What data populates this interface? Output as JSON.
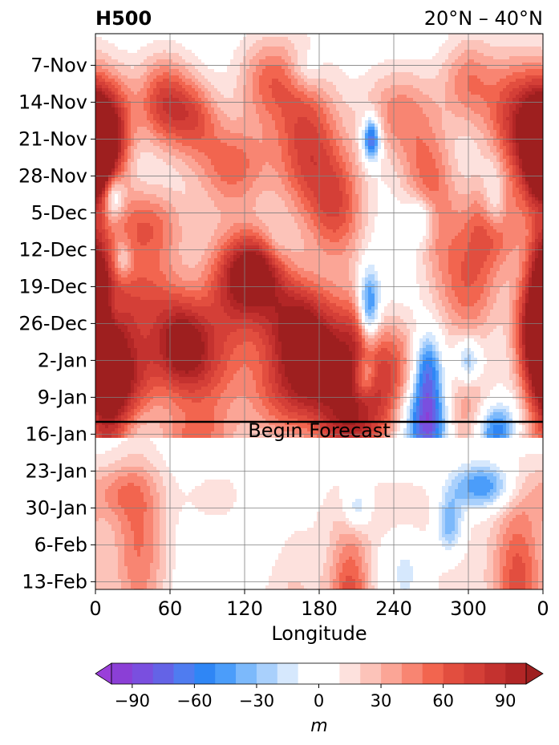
{
  "chart_data": {
    "type": "heatmap",
    "title_left": "H500",
    "title_right": "20°N – 40°N",
    "xlabel": "Longitude",
    "ylabel": "",
    "x_ticks": [
      "0",
      "60",
      "120",
      "180",
      "240",
      "300",
      "0"
    ],
    "x_tick_values": [
      0,
      60,
      120,
      180,
      240,
      300,
      360
    ],
    "y_ticks": [
      "7-Nov",
      "14-Nov",
      "21-Nov",
      "28-Nov",
      "5-Dec",
      "12-Dec",
      "19-Dec",
      "26-Dec",
      "2-Jan",
      "9-Jan",
      "16-Jan",
      "23-Jan",
      "30-Jan",
      "6-Feb",
      "13-Feb"
    ],
    "xlim": [
      0,
      360
    ],
    "grid": true,
    "forecast_line_date": "16-Jan",
    "annotation": "Begin Forecast",
    "colorbar": {
      "label": "m",
      "ticks": [
        -90,
        -60,
        -30,
        0,
        30,
        60,
        90
      ],
      "tick_labels": [
        "−90",
        "−60",
        "−30",
        "0",
        "30",
        "60",
        "90"
      ],
      "levels": [
        -100,
        -90,
        -80,
        -70,
        -60,
        -50,
        -40,
        -30,
        -20,
        -10,
        10,
        20,
        30,
        40,
        50,
        60,
        70,
        80,
        90,
        100
      ],
      "colors": [
        "#8b3fd6",
        "#7a4fdf",
        "#6463e6",
        "#4f7cf0",
        "#2f86f5",
        "#4b9dfa",
        "#7cb9fb",
        "#a9d0fc",
        "#d6e8fd",
        "#ffffff",
        "#fde1dd",
        "#fcc3b9",
        "#fba596",
        "#f88572",
        "#f2654f",
        "#e24e3f",
        "#d43f37",
        "#c4322f",
        "#b22626"
      ],
      "under_color": "#9a3fd9",
      "over_color": "#9e1f1f"
    },
    "field_blobs_hindcast": [
      {
        "lon": 18,
        "day": 12,
        "sl": 10,
        "sd": 7,
        "v": 55
      },
      {
        "lon": 55,
        "day": 7,
        "sl": 16,
        "sd": 6,
        "v": 72
      },
      {
        "lon": 80,
        "day": 10,
        "sl": 14,
        "sd": 5,
        "v": 48
      },
      {
        "lon": 2,
        "day": 15,
        "sl": 10,
        "sd": 8,
        "v": 85
      },
      {
        "lon": 40,
        "day": 30,
        "sl": 22,
        "sd": 5,
        "v": 50
      },
      {
        "lon": 110,
        "day": 19,
        "sl": 22,
        "sd": 6,
        "v": 55
      },
      {
        "lon": 140,
        "day": 3,
        "sl": 18,
        "sd": 6,
        "v": 50
      },
      {
        "lon": 170,
        "day": 15,
        "sl": 18,
        "sd": 10,
        "v": 70
      },
      {
        "lon": 195,
        "day": 27,
        "sl": 16,
        "sd": 8,
        "v": 60
      },
      {
        "lon": 245,
        "day": 9,
        "sl": 22,
        "sd": 6,
        "v": 45
      },
      {
        "lon": 265,
        "day": 20,
        "sl": 15,
        "sd": 6,
        "v": 40
      },
      {
        "lon": 340,
        "day": 10,
        "sl": 18,
        "sd": 8,
        "v": 80
      },
      {
        "lon": 358,
        "day": 17,
        "sl": 12,
        "sd": 7,
        "v": 90
      },
      {
        "lon": 355,
        "day": 50,
        "sl": 12,
        "sd": 8,
        "v": 85
      },
      {
        "lon": 320,
        "day": 30,
        "sl": 18,
        "sd": 6,
        "v": 55
      },
      {
        "lon": 300,
        "day": 42,
        "sl": 18,
        "sd": 8,
        "v": 55
      },
      {
        "lon": 40,
        "day": 45,
        "sl": 22,
        "sd": 8,
        "v": 60
      },
      {
        "lon": 5,
        "day": 50,
        "sl": 14,
        "sd": 8,
        "v": 85
      },
      {
        "lon": 0,
        "day": 37,
        "sl": 8,
        "sd": 5,
        "v": 60
      },
      {
        "lon": 110,
        "day": 42,
        "sl": 18,
        "sd": 8,
        "v": 60
      },
      {
        "lon": 90,
        "day": 57,
        "sl": 20,
        "sd": 8,
        "v": 55
      },
      {
        "lon": 130,
        "day": 39,
        "sl": 16,
        "sd": 5,
        "v": 90
      },
      {
        "lon": 160,
        "day": 48,
        "sl": 22,
        "sd": 6,
        "v": 80
      },
      {
        "lon": 180,
        "day": 57,
        "sl": 20,
        "sd": 7,
        "v": 90
      },
      {
        "lon": 70,
        "day": 53,
        "sl": 14,
        "sd": 6,
        "v": 75
      },
      {
        "lon": 30,
        "day": 59,
        "sl": 20,
        "sd": 6,
        "v": 55
      },
      {
        "lon": 10,
        "day": 63,
        "sl": 14,
        "sd": 6,
        "v": 80
      },
      {
        "lon": 150,
        "day": 62,
        "sl": 22,
        "sd": 7,
        "v": 55
      },
      {
        "lon": 210,
        "day": 52,
        "sl": 12,
        "sd": 7,
        "v": 50
      },
      {
        "lon": 225,
        "day": 65,
        "sl": 16,
        "sd": 7,
        "v": 55
      },
      {
        "lon": 240,
        "day": 56,
        "sl": 16,
        "sd": 6,
        "v": 45
      },
      {
        "lon": 200,
        "day": 69,
        "sl": 16,
        "sd": 6,
        "v": 65
      },
      {
        "lon": 80,
        "day": 72,
        "sl": 22,
        "sd": 5,
        "v": 45
      },
      {
        "lon": 10,
        "day": 74,
        "sl": 10,
        "sd": 4,
        "v": 45
      },
      {
        "lon": 300,
        "day": 66,
        "sl": 18,
        "sd": 6,
        "v": 40
      },
      {
        "lon": 330,
        "day": 75,
        "sl": 20,
        "sd": 5,
        "v": 45
      },
      {
        "lon": 300,
        "day": 3,
        "sl": 15,
        "sd": 6,
        "v": 45
      },
      {
        "lon": 275,
        "day": 30,
        "sl": 12,
        "sd": 8,
        "v": 30
      },
      {
        "lon": 222,
        "day": 14,
        "sl": 5,
        "sd": 3,
        "v": -90
      },
      {
        "lon": 14,
        "day": 25,
        "sl": 6,
        "sd": 3,
        "v": -55
      },
      {
        "lon": 262,
        "day": 29,
        "sl": 8,
        "sd": 3,
        "v": -35
      },
      {
        "lon": 220,
        "day": 46,
        "sl": 6,
        "sd": 5,
        "v": -80
      },
      {
        "lon": 267,
        "day": 58,
        "sl": 8,
        "sd": 5,
        "v": -70
      },
      {
        "lon": 300,
        "day": 56,
        "sl": 7,
        "sd": 3,
        "v": -45
      },
      {
        "lon": 267,
        "day": 68,
        "sl": 12,
        "sd": 5,
        "v": -90
      },
      {
        "lon": 322,
        "day": 70,
        "sl": 12,
        "sd": 4,
        "v": -95
      },
      {
        "lon": 14,
        "day": 47,
        "sl": 6,
        "sd": 3,
        "v": -35
      },
      {
        "lon": 22,
        "day": 37,
        "sl": 5,
        "sd": 2.5,
        "v": -30
      },
      {
        "lon": 217,
        "day": 59,
        "sl": 6,
        "sd": 3,
        "v": -50
      },
      {
        "lon": 145,
        "day": 34,
        "sl": 8,
        "sd": 3,
        "v": -15
      },
      {
        "lon": 322,
        "day": 28,
        "sl": 7,
        "sd": 3,
        "v": -25
      },
      {
        "lon": 170,
        "day": 1,
        "sl": 10,
        "sd": 3,
        "v": -25
      },
      {
        "lon": 320,
        "day": 23,
        "sl": 6,
        "sd": 4,
        "v": -25
      },
      {
        "lon": 240,
        "day": 75,
        "sl": 10,
        "sd": 3,
        "v": -20
      }
    ],
    "field_blobs_forecast": [
      {
        "lon": 35,
        "day": 92,
        "sl": 16,
        "sd": 12,
        "v": 50
      },
      {
        "lon": 15,
        "day": 81,
        "sl": 22,
        "sd": 4,
        "v": 30
      },
      {
        "lon": 205,
        "day": 104,
        "sl": 12,
        "sd": 12,
        "v": 70
      },
      {
        "lon": 160,
        "day": 106,
        "sl": 20,
        "sd": 12,
        "v": 25
      },
      {
        "lon": 340,
        "day": 98,
        "sl": 15,
        "sd": 12,
        "v": 65
      },
      {
        "lon": 240,
        "day": 84,
        "sl": 40,
        "sd": 5,
        "v": 15
      },
      {
        "lon": 290,
        "day": 95,
        "sl": 18,
        "sd": 14,
        "v": 15
      },
      {
        "lon": 100,
        "day": 82,
        "sl": 22,
        "sd": 4,
        "v": 15
      },
      {
        "lon": 210,
        "day": 84,
        "sl": 8,
        "sd": 3,
        "v": -40
      },
      {
        "lon": 285,
        "day": 87,
        "sl": 8,
        "sd": 4,
        "v": -55
      },
      {
        "lon": 310,
        "day": 80,
        "sl": 18,
        "sd": 3,
        "v": -60
      },
      {
        "lon": 130,
        "day": 86,
        "sl": 10,
        "sd": 6,
        "v": -15
      },
      {
        "lon": 250,
        "day": 96,
        "sl": 10,
        "sd": 5,
        "v": -15
      }
    ]
  }
}
